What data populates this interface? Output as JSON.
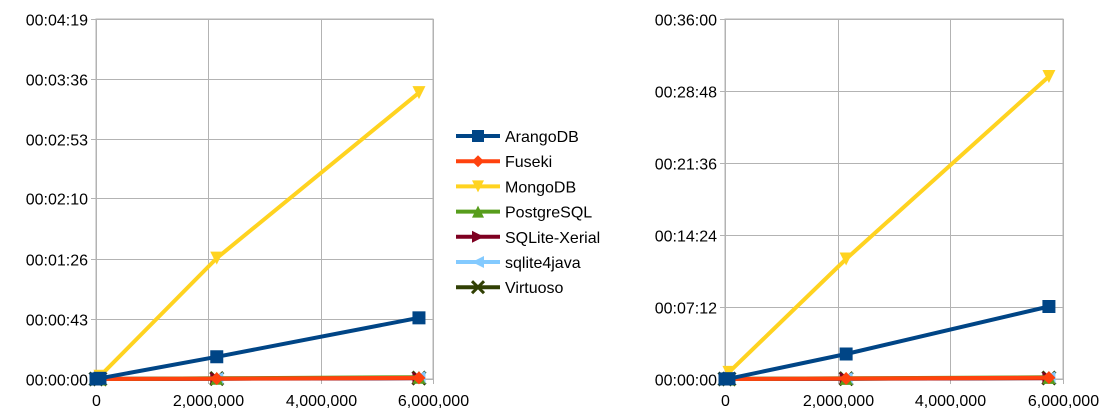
{
  "chart_data": [
    {
      "type": "line",
      "x": [
        0,
        70000,
        2150000,
        5750000
      ],
      "x_ticks": [
        0,
        2000000,
        4000000,
        6000000
      ],
      "x_tick_labels": [
        "0",
        "2,000,000",
        "4,000,000",
        "6,000,000"
      ],
      "xlim": [
        0,
        6000000
      ],
      "ylim": [
        0,
        259
      ],
      "y_ticks": [
        0,
        43,
        86,
        130,
        173,
        216,
        259
      ],
      "y_tick_labels": [
        "00:00:00",
        "00:00:43",
        "00:01:26",
        "00:02:10",
        "00:02:53",
        "00:03:36",
        "00:04:19"
      ],
      "grid": true,
      "series": [
        {
          "name": "ArangoDB",
          "color": "#004586",
          "marker": "square",
          "values": [
            0,
            0.5,
            16,
            44
          ]
        },
        {
          "name": "Fuseki",
          "color": "#ff420e",
          "marker": "diamond",
          "values": [
            0,
            0,
            0.3,
            0.8
          ]
        },
        {
          "name": "MongoDB",
          "color": "#ffd320",
          "marker": "triangle-down",
          "values": [
            0,
            2,
            87,
            206
          ]
        },
        {
          "name": "PostgreSQL",
          "color": "#579d1c",
          "marker": "triangle-up",
          "values": [
            0,
            0,
            0.5,
            1.3
          ]
        },
        {
          "name": "SQLite-Xerial",
          "color": "#7e0021",
          "marker": "triangle-right",
          "values": [
            0,
            0,
            0.2,
            0.5
          ]
        },
        {
          "name": "sqlite4java",
          "color": "#83caff",
          "marker": "triangle-left",
          "values": [
            0,
            0,
            0.4,
            1.0
          ]
        },
        {
          "name": "Virtuoso",
          "color": "#314004",
          "marker": "x",
          "values": [
            0,
            0,
            0.3,
            0.7
          ]
        }
      ]
    },
    {
      "type": "line",
      "x": [
        0,
        70000,
        2150000,
        5750000
      ],
      "x_ticks": [
        0,
        2000000,
        4000000,
        6000000
      ],
      "x_tick_labels": [
        "0",
        "2,000,000",
        "4,000,000",
        "6,000,000"
      ],
      "xlim": [
        0,
        6000000
      ],
      "ylim": [
        0,
        2160
      ],
      "y_ticks": [
        0,
        432,
        864,
        1296,
        1728,
        2160
      ],
      "y_tick_labels": [
        "00:00:00",
        "00:07:12",
        "00:14:24",
        "00:21:36",
        "00:28:48",
        "00:36:00"
      ],
      "grid": true,
      "series": [
        {
          "name": "ArangoDB",
          "color": "#004586",
          "marker": "square",
          "values": [
            0,
            2,
            150,
            435
          ]
        },
        {
          "name": "Fuseki",
          "color": "#ff420e",
          "marker": "diamond",
          "values": [
            0,
            0,
            3,
            8
          ]
        },
        {
          "name": "MongoDB",
          "color": "#ffd320",
          "marker": "triangle-down",
          "values": [
            0,
            40,
            720,
            1815
          ]
        },
        {
          "name": "PostgreSQL",
          "color": "#579d1c",
          "marker": "triangle-up",
          "values": [
            0,
            0,
            4,
            10
          ]
        },
        {
          "name": "SQLite-Xerial",
          "color": "#7e0021",
          "marker": "triangle-right",
          "values": [
            0,
            0,
            2,
            5
          ]
        },
        {
          "name": "sqlite4java",
          "color": "#83caff",
          "marker": "triangle-left",
          "values": [
            0,
            0,
            3,
            7
          ]
        },
        {
          "name": "Virtuoso",
          "color": "#314004",
          "marker": "x",
          "values": [
            0,
            0,
            2,
            6
          ]
        }
      ]
    }
  ],
  "legend": {
    "placement": "between-charts",
    "entries": [
      {
        "name": "ArangoDB",
        "color": "#004586",
        "marker": "square"
      },
      {
        "name": "Fuseki",
        "color": "#ff420e",
        "marker": "diamond"
      },
      {
        "name": "MongoDB",
        "color": "#ffd320",
        "marker": "triangle-down"
      },
      {
        "name": "PostgreSQL",
        "color": "#579d1c",
        "marker": "triangle-up"
      },
      {
        "name": "SQLite-Xerial",
        "color": "#7e0021",
        "marker": "triangle-right"
      },
      {
        "name": "sqlite4java",
        "color": "#83caff",
        "marker": "triangle-left"
      },
      {
        "name": "Virtuoso",
        "color": "#314004",
        "marker": "x"
      }
    ]
  }
}
